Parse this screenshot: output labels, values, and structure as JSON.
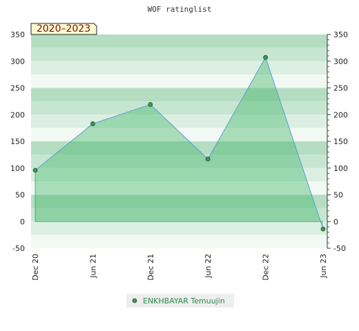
{
  "chart_data": {
    "type": "area",
    "title": "WOF ratinglist",
    "badge": "2020–2023",
    "x": [
      "Dec 20",
      "Jun 21",
      "Dec 21",
      "Jun 22",
      "Dec 22",
      "Jun 23"
    ],
    "xlabel": "",
    "ylabel": "",
    "ylim": [
      -50,
      350
    ],
    "yticks": [
      -50,
      0,
      50,
      100,
      150,
      200,
      250,
      300,
      350
    ],
    "grid": false,
    "legend_position": "bottom-center",
    "series": [
      {
        "name": "ENKHBAYAR Temuujin",
        "values": [
          96,
          183,
          219,
          117,
          307,
          -14
        ]
      }
    ],
    "colors": {
      "line": "#5b9bd5",
      "fill": "#3cb464",
      "marker": "#3c9a5a",
      "band_dark": "#b4ddc2",
      "band_light": "#f2f9f4"
    }
  }
}
